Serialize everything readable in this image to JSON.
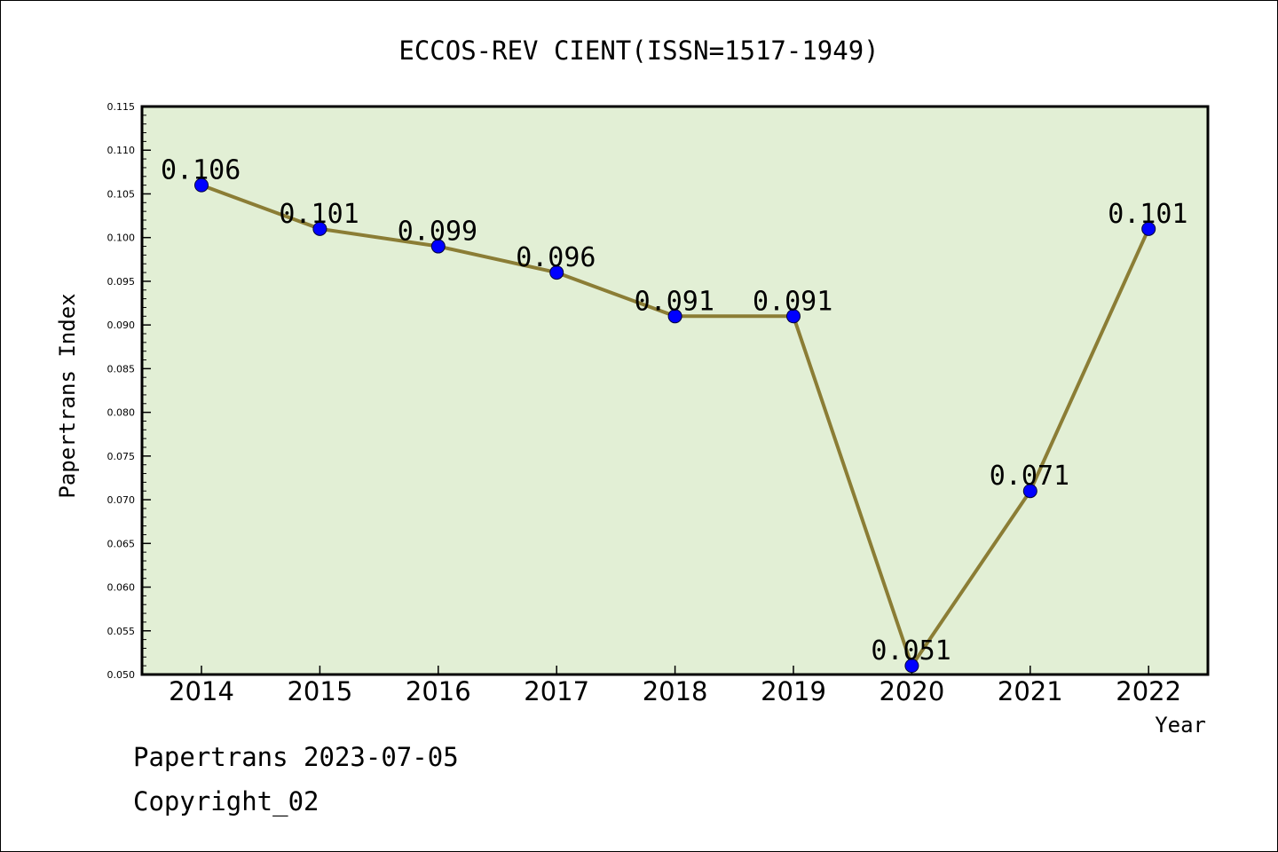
{
  "chart_data": {
    "type": "line",
    "title": "ECCOS-REV CIENT(ISSN=1517-1949)",
    "xlabel": "Year",
    "ylabel": "Papertrans Index",
    "categories": [
      "2014",
      "2015",
      "2016",
      "2017",
      "2018",
      "2019",
      "2020",
      "2021",
      "2022"
    ],
    "series": [
      {
        "values": [
          0.106,
          0.101,
          0.099,
          0.096,
          0.091,
          0.091,
          0.051,
          0.071,
          0.101
        ],
        "labels": [
          "0.106",
          "0.101",
          "0.099",
          "0.096",
          "0.091",
          "0.091",
          "0.051",
          "0.071",
          "0.101"
        ]
      }
    ],
    "ylim": [
      0.05,
      0.115
    ],
    "yticks": [
      "0.050",
      "0.055",
      "0.060",
      "0.065",
      "0.070",
      "0.075",
      "0.080",
      "0.085",
      "0.090",
      "0.095",
      "0.100",
      "0.105",
      "0.110",
      "0.115"
    ],
    "grid": false,
    "colors": {
      "plot_background": "#e2efd5",
      "line": "#8b7d35",
      "marker": "#0000ff",
      "axis": "#000000"
    }
  },
  "footer": {
    "line1": "Papertrans 2023-07-05",
    "line2": "Copyright_02"
  }
}
